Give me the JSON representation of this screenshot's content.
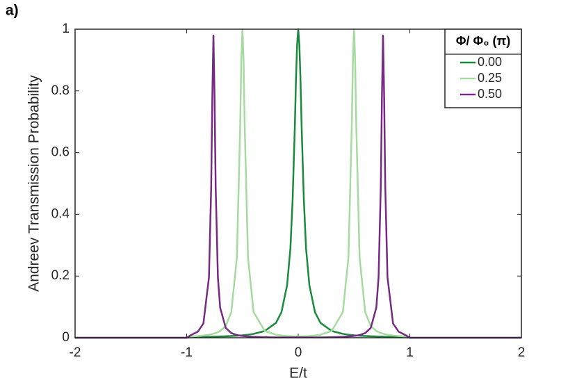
{
  "chart_data": {
    "type": "line",
    "panel_label": "a)",
    "xlabel": "E/t",
    "ylabel": "Andreev Transmission Probability",
    "legend_title": "Φ/ Φ₀ (π)",
    "legend_position": "upper right",
    "grid": false,
    "xlim": [
      -2,
      2
    ],
    "xticks": [
      -2,
      -1,
      0,
      1,
      2
    ],
    "ylim": [
      0,
      1
    ],
    "yticks": [
      0,
      0.2,
      0.4,
      0.6,
      0.8,
      1
    ],
    "x": [
      -2,
      -1,
      -0.95,
      -0.9,
      -0.85,
      -0.8,
      -0.78,
      -0.77,
      -0.76,
      -0.75,
      -0.74,
      -0.72,
      -0.7,
      -0.65,
      -0.6,
      -0.55,
      -0.52,
      -0.51,
      -0.5,
      -0.49,
      -0.48,
      -0.45,
      -0.4,
      -0.3,
      -0.2,
      -0.15,
      -0.1,
      -0.07,
      -0.05,
      -0.03,
      -0.02,
      -0.01,
      0,
      0.01,
      0.02,
      0.03,
      0.05,
      0.07,
      0.1,
      0.15,
      0.2,
      0.3,
      0.4,
      0.45,
      0.48,
      0.49,
      0.5,
      0.51,
      0.52,
      0.55,
      0.6,
      0.65,
      0.7,
      0.72,
      0.74,
      0.75,
      0.76,
      0.77,
      0.78,
      0.8,
      0.85,
      0.9,
      0.95,
      1,
      2
    ],
    "series": [
      {
        "name": "0.00",
        "color": "#1a8a3c",
        "values": [
          0,
          0,
          0.0022,
          0.0025,
          0.0028,
          0.0032,
          0.0033,
          0.0034,
          0.0035,
          0.0036,
          0.0037,
          0.0039,
          0.0041,
          0.0048,
          0.0056,
          0.0066,
          0.0074,
          0.0077,
          0.008,
          0.0084,
          0.0087,
          0.0099,
          0.0125,
          0.022,
          0.048,
          0.083,
          0.17,
          0.29,
          0.45,
          0.69,
          0.84,
          0.95,
          1,
          0.95,
          0.84,
          0.69,
          0.45,
          0.29,
          0.17,
          0.083,
          0.048,
          0.022,
          0.0125,
          0.0099,
          0.0087,
          0.0084,
          0.008,
          0.0077,
          0.0074,
          0.0066,
          0.0056,
          0.0048,
          0.0041,
          0.0039,
          0.0037,
          0.0036,
          0.0035,
          0.0034,
          0.0033,
          0.0032,
          0.0028,
          0.0025,
          0.0022,
          0,
          0
        ]
      },
      {
        "name": "0.25",
        "color": "#a6dba0",
        "values": [
          0,
          0,
          0.0044,
          0.0056,
          0.0073,
          0.0099,
          0.0113,
          0.0122,
          0.0131,
          0.0142,
          0.0154,
          0.0183,
          0.022,
          0.038,
          0.083,
          0.26,
          0.69,
          0.9,
          1,
          0.9,
          0.69,
          0.26,
          0.083,
          0.022,
          0.0099,
          0.0073,
          0.0056,
          0.0049,
          0.0044,
          0.004,
          0.0039,
          0.0037,
          0.0036,
          0.0037,
          0.0039,
          0.004,
          0.0044,
          0.0049,
          0.0056,
          0.0073,
          0.0099,
          0.022,
          0.083,
          0.26,
          0.69,
          0.9,
          1,
          0.9,
          0.69,
          0.26,
          0.083,
          0.038,
          0.022,
          0.0183,
          0.0154,
          0.0142,
          0.0131,
          0.0122,
          0.0113,
          0.0099,
          0.0073,
          0.0056,
          0.0044,
          0,
          0
        ]
      },
      {
        "name": "0.50",
        "color": "#762a83",
        "values": [
          0,
          0,
          0.0107,
          0.0196,
          0.046,
          0.196,
          0.49,
          0.78,
          0.98,
          0.78,
          0.49,
          0.196,
          0.098,
          0.032,
          0.015,
          0.0088,
          0.0068,
          0.0062,
          0.0058,
          0.0054,
          0.005,
          0.0041,
          0.003,
          0.0018,
          0.0012,
          0.001,
          0.001,
          0.001,
          0.001,
          0.001,
          0.001,
          0.001,
          0.001,
          0.001,
          0.001,
          0.001,
          0.001,
          0.001,
          0.001,
          0.001,
          0.0012,
          0.0018,
          0.003,
          0.0041,
          0.005,
          0.0054,
          0.0058,
          0.0062,
          0.0068,
          0.0088,
          0.015,
          0.032,
          0.098,
          0.196,
          0.49,
          0.78,
          0.98,
          0.78,
          0.49,
          0.196,
          0.046,
          0.0196,
          0.0107,
          0,
          0
        ]
      }
    ]
  }
}
